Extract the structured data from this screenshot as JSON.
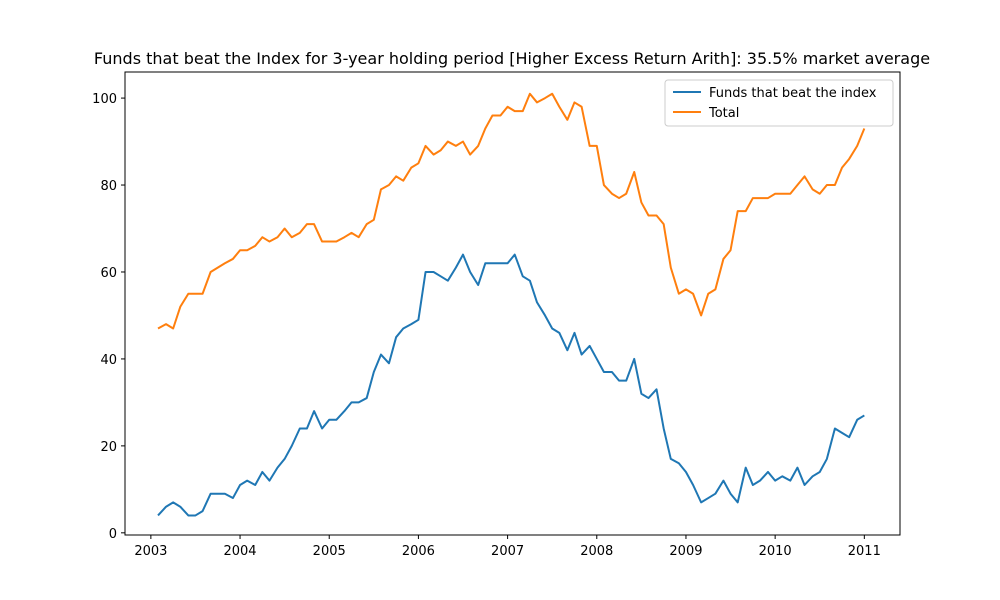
{
  "chart_data": {
    "type": "line",
    "title": "Funds that beat the Index for 3-year holding period [Higher Excess Return Arith]: 35.5% market average",
    "xlabel": "",
    "ylabel": "",
    "x_ticks": [
      "2003",
      "2004",
      "2005",
      "2006",
      "2007",
      "2008",
      "2009",
      "2010",
      "2011"
    ],
    "y_ticks": [
      "0",
      "20",
      "40",
      "60",
      "80",
      "100"
    ],
    "xlim": [
      2002.71,
      2011.4
    ],
    "ylim": [
      -0.5,
      106
    ],
    "grid": false,
    "legend_position": "top-right",
    "series": [
      {
        "name": "Funds that beat the index",
        "color": "#1f77b4",
        "points": [
          [
            2003.08,
            4
          ],
          [
            2003.17,
            6
          ],
          [
            2003.25,
            7
          ],
          [
            2003.33,
            6
          ],
          [
            2003.42,
            4
          ],
          [
            2003.5,
            4
          ],
          [
            2003.58,
            5
          ],
          [
            2003.67,
            9
          ],
          [
            2003.75,
            9
          ],
          [
            2003.83,
            9
          ],
          [
            2003.92,
            8
          ],
          [
            2004.0,
            11
          ],
          [
            2004.08,
            12
          ],
          [
            2004.17,
            11
          ],
          [
            2004.25,
            14
          ],
          [
            2004.33,
            12
          ],
          [
            2004.42,
            15
          ],
          [
            2004.5,
            17
          ],
          [
            2004.58,
            20
          ],
          [
            2004.67,
            24
          ],
          [
            2004.75,
            24
          ],
          [
            2004.83,
            28
          ],
          [
            2004.92,
            24
          ],
          [
            2005.0,
            26
          ],
          [
            2005.08,
            26
          ],
          [
            2005.17,
            28
          ],
          [
            2005.25,
            30
          ],
          [
            2005.33,
            30
          ],
          [
            2005.42,
            31
          ],
          [
            2005.5,
            37
          ],
          [
            2005.58,
            41
          ],
          [
            2005.67,
            39
          ],
          [
            2005.75,
            45
          ],
          [
            2005.83,
            47
          ],
          [
            2005.92,
            48
          ],
          [
            2006.0,
            49
          ],
          [
            2006.08,
            60
          ],
          [
            2006.17,
            60
          ],
          [
            2006.25,
            59
          ],
          [
            2006.33,
            58
          ],
          [
            2006.42,
            61
          ],
          [
            2006.5,
            64
          ],
          [
            2006.58,
            60
          ],
          [
            2006.67,
            57
          ],
          [
            2006.75,
            62
          ],
          [
            2006.83,
            62
          ],
          [
            2006.92,
            62
          ],
          [
            2007.0,
            62
          ],
          [
            2007.08,
            64
          ],
          [
            2007.17,
            59
          ],
          [
            2007.25,
            58
          ],
          [
            2007.33,
            53
          ],
          [
            2007.42,
            50
          ],
          [
            2007.5,
            47
          ],
          [
            2007.58,
            46
          ],
          [
            2007.67,
            42
          ],
          [
            2007.75,
            46
          ],
          [
            2007.83,
            41
          ],
          [
            2007.92,
            43
          ],
          [
            2008.0,
            40
          ],
          [
            2008.08,
            37
          ],
          [
            2008.17,
            37
          ],
          [
            2008.25,
            35
          ],
          [
            2008.33,
            35
          ],
          [
            2008.42,
            40
          ],
          [
            2008.5,
            32
          ],
          [
            2008.58,
            31
          ],
          [
            2008.67,
            33
          ],
          [
            2008.75,
            24
          ],
          [
            2008.83,
            17
          ],
          [
            2008.92,
            16
          ],
          [
            2009.0,
            14
          ],
          [
            2009.08,
            11
          ],
          [
            2009.17,
            7
          ],
          [
            2009.25,
            8
          ],
          [
            2009.33,
            9
          ],
          [
            2009.42,
            12
          ],
          [
            2009.5,
            9
          ],
          [
            2009.58,
            7
          ],
          [
            2009.67,
            15
          ],
          [
            2009.75,
            11
          ],
          [
            2009.83,
            12
          ],
          [
            2009.92,
            14
          ],
          [
            2010.0,
            12
          ],
          [
            2010.08,
            13
          ],
          [
            2010.17,
            12
          ],
          [
            2010.25,
            15
          ],
          [
            2010.33,
            11
          ],
          [
            2010.42,
            13
          ],
          [
            2010.5,
            14
          ],
          [
            2010.58,
            17
          ],
          [
            2010.67,
            24
          ],
          [
            2010.75,
            23
          ],
          [
            2010.83,
            22
          ],
          [
            2010.92,
            26
          ],
          [
            2011.0,
            27
          ]
        ]
      },
      {
        "name": "Total",
        "color": "#ff7f0e",
        "points": [
          [
            2003.08,
            47
          ],
          [
            2003.17,
            48
          ],
          [
            2003.25,
            47
          ],
          [
            2003.33,
            52
          ],
          [
            2003.42,
            55
          ],
          [
            2003.5,
            55
          ],
          [
            2003.58,
            55
          ],
          [
            2003.67,
            60
          ],
          [
            2003.75,
            61
          ],
          [
            2003.83,
            62
          ],
          [
            2003.92,
            63
          ],
          [
            2004.0,
            65
          ],
          [
            2004.08,
            65
          ],
          [
            2004.17,
            66
          ],
          [
            2004.25,
            68
          ],
          [
            2004.33,
            67
          ],
          [
            2004.42,
            68
          ],
          [
            2004.5,
            70
          ],
          [
            2004.58,
            68
          ],
          [
            2004.67,
            69
          ],
          [
            2004.75,
            71
          ],
          [
            2004.83,
            71
          ],
          [
            2004.92,
            67
          ],
          [
            2005.0,
            67
          ],
          [
            2005.08,
            67
          ],
          [
            2005.17,
            68
          ],
          [
            2005.25,
            69
          ],
          [
            2005.33,
            68
          ],
          [
            2005.42,
            71
          ],
          [
            2005.5,
            72
          ],
          [
            2005.58,
            79
          ],
          [
            2005.67,
            80
          ],
          [
            2005.75,
            82
          ],
          [
            2005.83,
            81
          ],
          [
            2005.92,
            84
          ],
          [
            2006.0,
            85
          ],
          [
            2006.08,
            89
          ],
          [
            2006.17,
            87
          ],
          [
            2006.25,
            88
          ],
          [
            2006.33,
            90
          ],
          [
            2006.42,
            89
          ],
          [
            2006.5,
            90
          ],
          [
            2006.58,
            87
          ],
          [
            2006.67,
            89
          ],
          [
            2006.75,
            93
          ],
          [
            2006.83,
            96
          ],
          [
            2006.92,
            96
          ],
          [
            2007.0,
            98
          ],
          [
            2007.08,
            97
          ],
          [
            2007.17,
            97
          ],
          [
            2007.25,
            101
          ],
          [
            2007.33,
            99
          ],
          [
            2007.42,
            100
          ],
          [
            2007.5,
            101
          ],
          [
            2007.58,
            98
          ],
          [
            2007.67,
            95
          ],
          [
            2007.75,
            99
          ],
          [
            2007.83,
            98
          ],
          [
            2007.92,
            89
          ],
          [
            2008.0,
            89
          ],
          [
            2008.08,
            80
          ],
          [
            2008.17,
            78
          ],
          [
            2008.25,
            77
          ],
          [
            2008.33,
            78
          ],
          [
            2008.42,
            83
          ],
          [
            2008.5,
            76
          ],
          [
            2008.58,
            73
          ],
          [
            2008.67,
            73
          ],
          [
            2008.75,
            71
          ],
          [
            2008.83,
            61
          ],
          [
            2008.92,
            55
          ],
          [
            2009.0,
            56
          ],
          [
            2009.08,
            55
          ],
          [
            2009.17,
            50
          ],
          [
            2009.25,
            55
          ],
          [
            2009.33,
            56
          ],
          [
            2009.42,
            63
          ],
          [
            2009.5,
            65
          ],
          [
            2009.58,
            74
          ],
          [
            2009.67,
            74
          ],
          [
            2009.75,
            77
          ],
          [
            2009.83,
            77
          ],
          [
            2009.92,
            77
          ],
          [
            2010.0,
            78
          ],
          [
            2010.08,
            78
          ],
          [
            2010.17,
            78
          ],
          [
            2010.25,
            80
          ],
          [
            2010.33,
            82
          ],
          [
            2010.42,
            79
          ],
          [
            2010.5,
            78
          ],
          [
            2010.58,
            80
          ],
          [
            2010.67,
            80
          ],
          [
            2010.75,
            84
          ],
          [
            2010.83,
            86
          ],
          [
            2010.92,
            89
          ],
          [
            2011.0,
            93
          ]
        ]
      }
    ]
  }
}
